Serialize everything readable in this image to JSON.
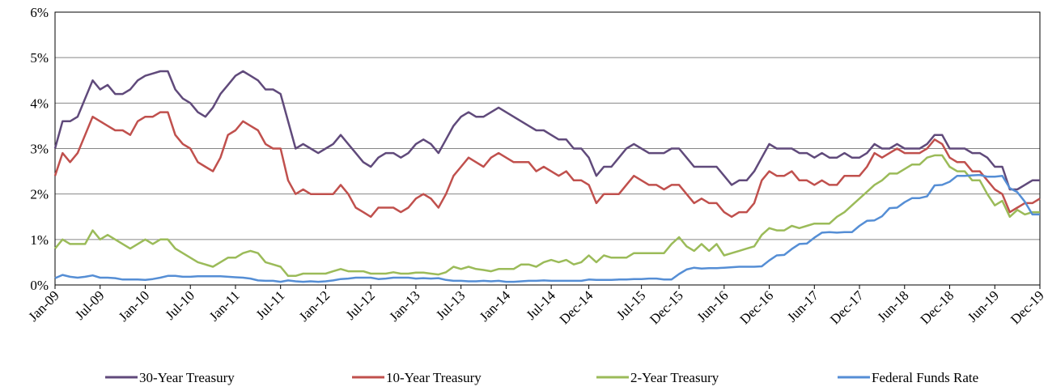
{
  "chart_data": {
    "type": "line",
    "categories": [
      "Jan-09",
      null,
      null,
      null,
      null,
      null,
      "Jul-09",
      null,
      null,
      null,
      null,
      null,
      "Jan-10",
      null,
      null,
      null,
      null,
      null,
      "Jul-10",
      null,
      null,
      null,
      null,
      null,
      "Jan-11",
      null,
      null,
      null,
      null,
      null,
      "Jul-11",
      null,
      null,
      null,
      null,
      null,
      "Jan-12",
      null,
      null,
      null,
      null,
      null,
      "Jul-12",
      null,
      null,
      null,
      null,
      null,
      "Jan-13",
      null,
      null,
      null,
      null,
      null,
      "Jul-13",
      null,
      null,
      null,
      null,
      null,
      "Jan-14",
      null,
      null,
      null,
      null,
      null,
      "Jul-14",
      null,
      null,
      null,
      null,
      "Dec-14",
      null,
      null,
      null,
      null,
      null,
      null,
      "Jul-15",
      null,
      null,
      null,
      null,
      "Dec-15",
      null,
      null,
      null,
      null,
      null,
      "Jun-16",
      null,
      null,
      null,
      null,
      null,
      "Dec-16",
      null,
      null,
      null,
      null,
      null,
      "Jun-17",
      null,
      null,
      null,
      null,
      null,
      "Dec-17",
      null,
      null,
      null,
      null,
      null,
      "Jun-18",
      null,
      null,
      null,
      null,
      null,
      "Dec-18",
      null,
      null,
      null,
      null,
      null,
      "Jun-19",
      null,
      null,
      null,
      null,
      null,
      "Dec-19"
    ],
    "series": [
      {
        "name": "30-Year Treasury",
        "color": "#604a7b",
        "values": [
          3.0,
          3.6,
          3.6,
          3.7,
          4.1,
          4.5,
          4.3,
          4.4,
          4.2,
          4.2,
          4.3,
          4.5,
          4.6,
          4.65,
          4.7,
          4.7,
          4.3,
          4.1,
          4.0,
          3.8,
          3.7,
          3.9,
          4.2,
          4.4,
          4.6,
          4.7,
          4.6,
          4.5,
          4.3,
          4.3,
          4.2,
          3.6,
          3.0,
          3.1,
          3.0,
          2.9,
          3.0,
          3.1,
          3.3,
          3.1,
          2.9,
          2.7,
          2.6,
          2.8,
          2.9,
          2.9,
          2.8,
          2.9,
          3.1,
          3.2,
          3.1,
          2.9,
          3.2,
          3.5,
          3.7,
          3.8,
          3.7,
          3.7,
          3.8,
          3.9,
          3.8,
          3.7,
          3.6,
          3.5,
          3.4,
          3.4,
          3.3,
          3.2,
          3.2,
          3.0,
          3.0,
          2.8,
          2.4,
          2.6,
          2.6,
          2.8,
          3.0,
          3.1,
          3.0,
          2.9,
          2.9,
          2.9,
          3.0,
          3.0,
          2.8,
          2.6,
          2.6,
          2.6,
          2.6,
          2.4,
          2.2,
          2.3,
          2.3,
          2.5,
          2.8,
          3.1,
          3.0,
          3.0,
          3.0,
          2.9,
          2.9,
          2.8,
          2.9,
          2.8,
          2.8,
          2.9,
          2.8,
          2.8,
          2.9,
          3.1,
          3.0,
          3.0,
          3.1,
          3.0,
          3.0,
          3.0,
          3.1,
          3.3,
          3.3,
          3.0,
          3.0,
          3.0,
          2.9,
          2.9,
          2.8,
          2.6,
          2.6,
          2.1,
          2.1,
          2.2,
          2.3,
          2.3
        ]
      },
      {
        "name": "10-Year Treasury",
        "color": "#c0504d",
        "values": [
          2.4,
          2.9,
          2.7,
          2.9,
          3.3,
          3.7,
          3.6,
          3.5,
          3.4,
          3.4,
          3.3,
          3.6,
          3.7,
          3.7,
          3.8,
          3.8,
          3.3,
          3.1,
          3.0,
          2.7,
          2.6,
          2.5,
          2.8,
          3.3,
          3.4,
          3.6,
          3.5,
          3.4,
          3.1,
          3.0,
          3.0,
          2.3,
          2.0,
          2.1,
          2.0,
          2.0,
          2.0,
          2.0,
          2.2,
          2.0,
          1.7,
          1.6,
          1.5,
          1.7,
          1.7,
          1.7,
          1.6,
          1.7,
          1.9,
          2.0,
          1.9,
          1.7,
          2.0,
          2.4,
          2.6,
          2.8,
          2.7,
          2.6,
          2.8,
          2.9,
          2.8,
          2.7,
          2.7,
          2.7,
          2.5,
          2.6,
          2.5,
          2.4,
          2.5,
          2.3,
          2.3,
          2.2,
          1.8,
          2.0,
          2.0,
          2.0,
          2.2,
          2.4,
          2.3,
          2.2,
          2.2,
          2.1,
          2.2,
          2.2,
          2.0,
          1.8,
          1.9,
          1.8,
          1.8,
          1.6,
          1.5,
          1.6,
          1.6,
          1.8,
          2.3,
          2.5,
          2.4,
          2.4,
          2.5,
          2.3,
          2.3,
          2.2,
          2.3,
          2.2,
          2.2,
          2.4,
          2.4,
          2.4,
          2.6,
          2.9,
          2.8,
          2.9,
          3.0,
          2.9,
          2.9,
          2.9,
          3.0,
          3.2,
          3.1,
          2.8,
          2.7,
          2.7,
          2.5,
          2.5,
          2.3,
          2.1,
          2.0,
          1.6,
          1.7,
          1.8,
          1.8,
          1.9
        ]
      },
      {
        "name": "2-Year Treasury",
        "color": "#9bbb59",
        "values": [
          0.8,
          1.0,
          0.9,
          0.9,
          0.9,
          1.2,
          1.0,
          1.1,
          1.0,
          0.9,
          0.8,
          0.9,
          1.0,
          0.9,
          1.0,
          1.0,
          0.8,
          0.7,
          0.6,
          0.5,
          0.45,
          0.4,
          0.5,
          0.6,
          0.6,
          0.7,
          0.75,
          0.7,
          0.5,
          0.45,
          0.4,
          0.2,
          0.2,
          0.25,
          0.25,
          0.25,
          0.25,
          0.3,
          0.35,
          0.3,
          0.3,
          0.3,
          0.25,
          0.25,
          0.25,
          0.28,
          0.25,
          0.25,
          0.27,
          0.27,
          0.25,
          0.23,
          0.28,
          0.4,
          0.35,
          0.4,
          0.35,
          0.33,
          0.3,
          0.35,
          0.35,
          0.35,
          0.45,
          0.45,
          0.4,
          0.5,
          0.55,
          0.5,
          0.55,
          0.45,
          0.5,
          0.65,
          0.5,
          0.65,
          0.6,
          0.6,
          0.6,
          0.7,
          0.7,
          0.7,
          0.7,
          0.7,
          0.9,
          1.05,
          0.85,
          0.75,
          0.9,
          0.75,
          0.9,
          0.65,
          0.7,
          0.75,
          0.8,
          0.85,
          1.1,
          1.25,
          1.2,
          1.2,
          1.3,
          1.25,
          1.3,
          1.35,
          1.35,
          1.35,
          1.5,
          1.6,
          1.75,
          1.9,
          2.05,
          2.2,
          2.3,
          2.45,
          2.45,
          2.55,
          2.65,
          2.65,
          2.8,
          2.85,
          2.85,
          2.6,
          2.5,
          2.5,
          2.3,
          2.3,
          2.0,
          1.75,
          1.85,
          1.5,
          1.65,
          1.55,
          1.6,
          1.6
        ]
      },
      {
        "name": "Federal Funds Rate",
        "color": "#558ed5",
        "values": [
          0.15,
          0.22,
          0.18,
          0.16,
          0.18,
          0.21,
          0.16,
          0.16,
          0.15,
          0.12,
          0.12,
          0.12,
          0.11,
          0.13,
          0.16,
          0.2,
          0.2,
          0.18,
          0.18,
          0.19,
          0.19,
          0.19,
          0.19,
          0.18,
          0.17,
          0.16,
          0.14,
          0.1,
          0.09,
          0.09,
          0.07,
          0.1,
          0.08,
          0.07,
          0.08,
          0.07,
          0.08,
          0.1,
          0.13,
          0.14,
          0.16,
          0.16,
          0.16,
          0.13,
          0.14,
          0.16,
          0.16,
          0.16,
          0.14,
          0.15,
          0.14,
          0.15,
          0.11,
          0.09,
          0.09,
          0.08,
          0.08,
          0.09,
          0.08,
          0.09,
          0.07,
          0.07,
          0.08,
          0.09,
          0.09,
          0.1,
          0.09,
          0.09,
          0.09,
          0.09,
          0.09,
          0.12,
          0.11,
          0.11,
          0.11,
          0.12,
          0.12,
          0.13,
          0.13,
          0.14,
          0.14,
          0.12,
          0.12,
          0.24,
          0.34,
          0.38,
          0.36,
          0.37,
          0.37,
          0.38,
          0.39,
          0.4,
          0.4,
          0.4,
          0.41,
          0.54,
          0.65,
          0.66,
          0.79,
          0.9,
          0.91,
          1.04,
          1.15,
          1.16,
          1.15,
          1.16,
          1.16,
          1.3,
          1.41,
          1.42,
          1.51,
          1.69,
          1.7,
          1.82,
          1.91,
          1.91,
          1.95,
          2.19,
          2.2,
          2.27,
          2.4,
          2.4,
          2.41,
          2.42,
          2.38,
          2.38,
          2.4,
          2.13,
          2.04,
          1.83,
          1.55,
          1.55
        ]
      }
    ],
    "ylim": [
      0,
      6
    ],
    "yticks": [
      {
        "value": 0,
        "label": "0%"
      },
      {
        "value": 1,
        "label": "1%"
      },
      {
        "value": 2,
        "label": "2%"
      },
      {
        "value": 3,
        "label": "3%"
      },
      {
        "value": 4,
        "label": "4%"
      },
      {
        "value": 5,
        "label": "5%"
      },
      {
        "value": 6,
        "label": "6%"
      }
    ],
    "grid": true,
    "legend": "bottom"
  }
}
